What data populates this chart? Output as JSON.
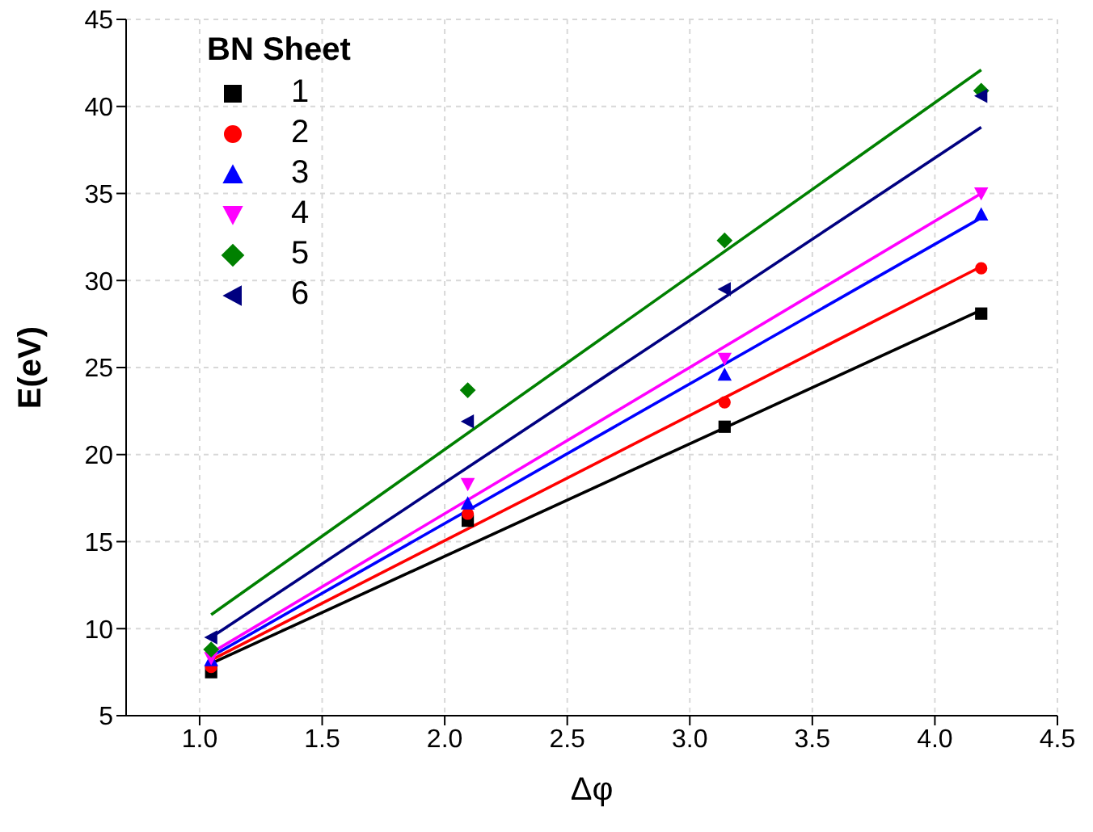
{
  "chart_data": {
    "type": "scatter",
    "xlabel": "Δφ",
    "ylabel": "E(eV)",
    "legend_title": "BN Sheet",
    "legend": "top left",
    "grid": true,
    "xlim": [
      0.7,
      4.5
    ],
    "xticks": [
      {
        "value": 1,
        "label": "1.0"
      },
      1.5,
      {
        "value": 2,
        "label": "2.0"
      },
      2.5,
      {
        "value": 3,
        "label": "3.0"
      },
      3.5,
      {
        "value": 4,
        "label": "4.0"
      },
      4.5
    ],
    "ylim": [
      5,
      45
    ],
    "yticks": [
      5,
      10,
      15,
      20,
      25,
      30,
      35,
      40,
      45
    ],
    "series": [
      {
        "name": "1",
        "color": "#000000",
        "marker": "square",
        "x": [
          1.047,
          2.094,
          3.142,
          4.189
        ],
        "values": [
          7.5,
          16.2,
          21.6,
          28.1
        ]
      },
      {
        "name": "2",
        "color": "#ff0000",
        "marker": "circle",
        "x": [
          1.047,
          2.094,
          3.142,
          4.189
        ],
        "values": [
          7.8,
          16.6,
          23.0,
          30.7
        ]
      },
      {
        "name": "3",
        "color": "#0000ff",
        "marker": "triangle",
        "x": [
          1.047,
          2.094,
          3.142,
          4.189
        ],
        "values": [
          8.2,
          17.2,
          24.6,
          33.8
        ]
      },
      {
        "name": "4",
        "color": "#ff00ff",
        "marker": "triangle-down",
        "x": [
          1.047,
          2.094,
          3.142,
          4.189
        ],
        "values": [
          8.3,
          18.3,
          25.5,
          35.0
        ]
      },
      {
        "name": "5",
        "color": "#008000",
        "marker": "diamond",
        "x": [
          1.047,
          2.094,
          3.142,
          4.189
        ],
        "values": [
          8.8,
          23.7,
          32.3,
          40.9
        ]
      },
      {
        "name": "6",
        "color": "#000080",
        "marker": "triangle-left",
        "x": [
          1.047,
          2.094,
          3.142,
          4.189
        ],
        "values": [
          9.5,
          21.9,
          29.5,
          40.6
        ]
      },
      {
        "type": "line",
        "color": "#000000",
        "x": [
          1.047,
          4.189
        ],
        "values": [
          8.0,
          28.3
        ]
      },
      {
        "type": "line",
        "color": "#ff0000",
        "x": [
          1.047,
          4.189
        ],
        "values": [
          8.2,
          30.8
        ]
      },
      {
        "type": "line",
        "color": "#0000ff",
        "x": [
          1.047,
          4.189
        ],
        "values": [
          8.4,
          33.6
        ]
      },
      {
        "type": "line",
        "color": "#ff00ff",
        "x": [
          1.047,
          4.189
        ],
        "values": [
          8.6,
          35.0
        ]
      },
      {
        "type": "line",
        "color": "#008000",
        "x": [
          1.047,
          4.189
        ],
        "values": [
          10.8,
          42.1
        ]
      },
      {
        "type": "line",
        "color": "#000080",
        "x": [
          1.047,
          4.189
        ],
        "values": [
          9.5,
          38.8
        ]
      }
    ]
  }
}
